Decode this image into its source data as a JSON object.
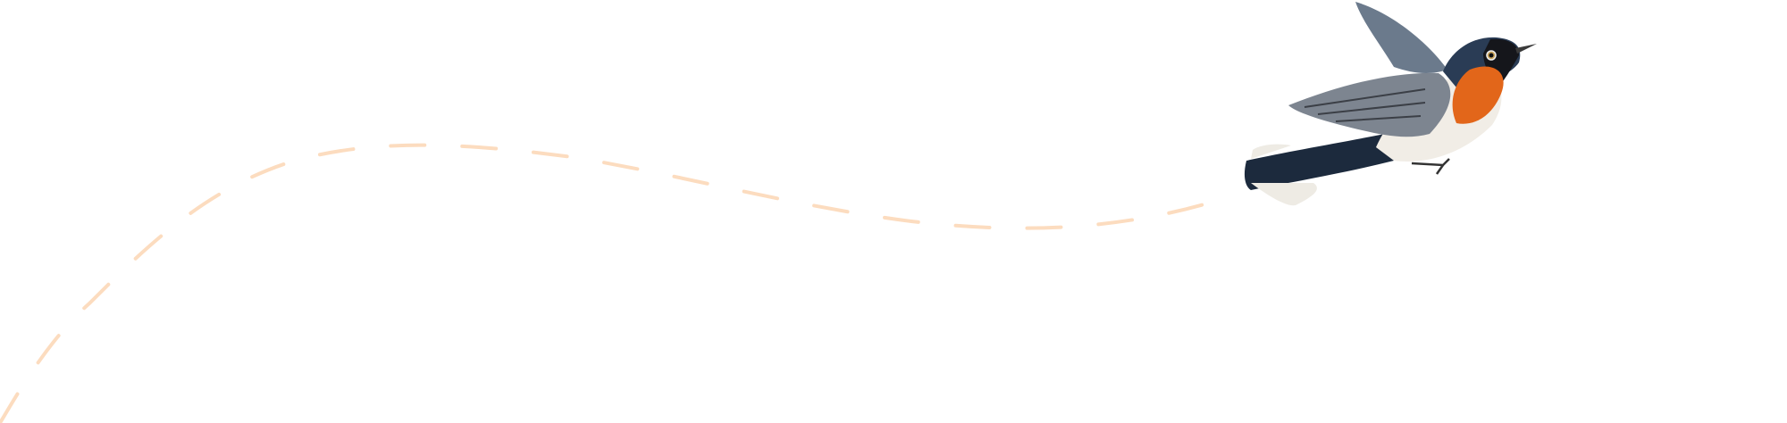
{
  "illustration": {
    "subject": "bird-icon",
    "colors": {
      "flight_path": "#fcdcbf",
      "throat": "#e2661a",
      "head": "#2a3c55",
      "wing": "#7d8590",
      "belly": "#f1ede6",
      "tail": "#1c2a3d"
    }
  }
}
